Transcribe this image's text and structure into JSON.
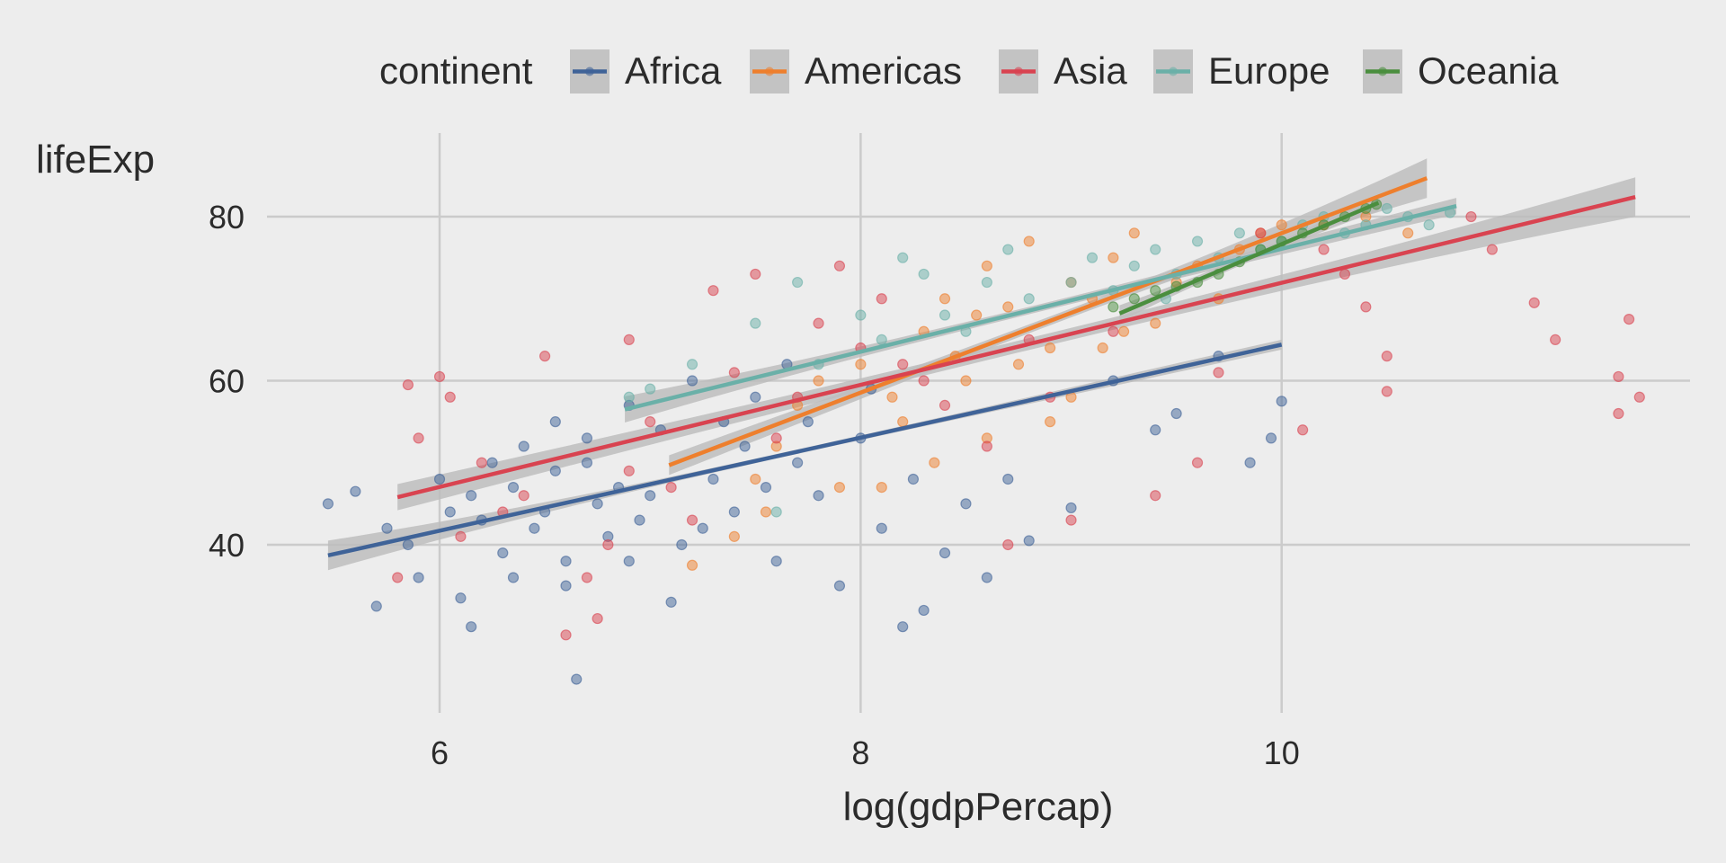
{
  "chart_data": {
    "type": "scatter",
    "title": "",
    "xlabel": "log(gdpPercap)",
    "ylabel": "lifeExp",
    "xlim": [
      5.18,
      11.94
    ],
    "ylim": [
      19.5,
      90.2
    ],
    "xticks": [
      6,
      8,
      10
    ],
    "yticks": [
      40,
      60,
      80
    ],
    "xtick_labels": [
      "6",
      "8",
      "10"
    ],
    "ytick_labels": [
      "40",
      "60",
      "80"
    ],
    "grid": true,
    "legend": {
      "title": "continent",
      "position": "top"
    },
    "series": [
      {
        "name": "Africa",
        "color": "#3f6398",
        "fit": {
          "x": [
            5.47,
            10.0
          ],
          "y": [
            38.7,
            64.4
          ],
          "ci_halfwidth": [
            1.8,
            0.6
          ]
        },
        "points": [
          [
            5.47,
            45
          ],
          [
            5.6,
            46.5
          ],
          [
            5.7,
            32.5
          ],
          [
            5.75,
            42
          ],
          [
            5.9,
            36
          ],
          [
            6.0,
            48
          ],
          [
            6.1,
            33.5
          ],
          [
            6.15,
            30
          ],
          [
            6.2,
            43
          ],
          [
            6.3,
            39
          ],
          [
            6.35,
            47
          ],
          [
            6.4,
            52
          ],
          [
            6.5,
            44
          ],
          [
            6.55,
            55
          ],
          [
            6.6,
            35
          ],
          [
            6.65,
            23.6
          ],
          [
            6.7,
            50
          ],
          [
            6.8,
            41
          ],
          [
            6.9,
            57
          ],
          [
            7.0,
            46
          ],
          [
            7.1,
            33
          ],
          [
            7.2,
            60
          ],
          [
            7.3,
            48
          ],
          [
            7.4,
            44
          ],
          [
            7.5,
            58
          ],
          [
            7.6,
            38
          ],
          [
            7.7,
            50
          ],
          [
            7.8,
            46
          ],
          [
            7.9,
            35
          ],
          [
            8.0,
            53
          ],
          [
            8.1,
            42
          ],
          [
            8.2,
            30
          ],
          [
            8.3,
            32
          ],
          [
            8.4,
            39
          ],
          [
            8.5,
            45
          ],
          [
            8.6,
            36
          ],
          [
            8.7,
            48
          ],
          [
            8.8,
            40.5
          ],
          [
            9.0,
            44.5
          ],
          [
            9.2,
            60
          ],
          [
            9.4,
            54
          ],
          [
            9.5,
            56
          ],
          [
            9.7,
            63
          ],
          [
            9.85,
            50
          ],
          [
            9.95,
            53
          ],
          [
            10.0,
            57.5
          ],
          [
            6.45,
            42
          ],
          [
            6.75,
            45
          ],
          [
            7.05,
            54
          ],
          [
            7.25,
            42
          ],
          [
            7.45,
            52
          ],
          [
            6.25,
            50
          ],
          [
            6.6,
            38
          ],
          [
            7.65,
            62
          ],
          [
            8.05,
            59
          ],
          [
            6.05,
            44
          ],
          [
            6.35,
            36
          ],
          [
            6.85,
            47
          ],
          [
            7.15,
            40
          ],
          [
            7.35,
            55
          ],
          [
            6.55,
            49
          ],
          [
            6.95,
            43
          ],
          [
            7.55,
            47
          ],
          [
            6.15,
            46
          ],
          [
            6.7,
            53
          ],
          [
            5.85,
            40
          ],
          [
            6.9,
            38
          ],
          [
            7.75,
            55
          ],
          [
            8.25,
            48
          ]
        ]
      },
      {
        "name": "Americas",
        "color": "#ee7f2d",
        "fit": {
          "x": [
            7.09,
            10.69
          ],
          "y": [
            49.7,
            84.7
          ],
          "ci_halfwidth": [
            1.2,
            2.4
          ]
        },
        "points": [
          [
            7.2,
            37.5
          ],
          [
            7.4,
            41
          ],
          [
            7.5,
            48
          ],
          [
            7.6,
            52
          ],
          [
            7.7,
            57
          ],
          [
            7.8,
            60
          ],
          [
            7.9,
            47
          ],
          [
            8.0,
            62
          ],
          [
            8.1,
            47
          ],
          [
            8.2,
            55
          ],
          [
            8.3,
            66
          ],
          [
            8.4,
            70
          ],
          [
            8.5,
            60
          ],
          [
            8.6,
            74
          ],
          [
            8.7,
            69
          ],
          [
            8.8,
            77
          ],
          [
            8.9,
            64
          ],
          [
            9.0,
            72
          ],
          [
            9.1,
            70
          ],
          [
            9.2,
            75
          ],
          [
            9.3,
            78
          ],
          [
            9.4,
            67
          ],
          [
            9.5,
            72
          ],
          [
            9.6,
            74
          ],
          [
            9.7,
            70
          ],
          [
            9.8,
            76
          ],
          [
            9.9,
            78
          ],
          [
            10.0,
            79
          ],
          [
            10.2,
            79
          ],
          [
            10.4,
            80
          ],
          [
            10.6,
            78
          ],
          [
            8.35,
            50
          ],
          [
            8.6,
            53
          ],
          [
            9.0,
            58
          ],
          [
            7.55,
            44
          ],
          [
            8.45,
            63
          ],
          [
            8.9,
            55
          ],
          [
            8.15,
            58
          ],
          [
            8.75,
            62
          ],
          [
            9.25,
            66
          ],
          [
            8.55,
            68
          ],
          [
            9.15,
            64
          ]
        ]
      },
      {
        "name": "Asia",
        "color": "#d94350",
        "fit": {
          "x": [
            5.8,
            11.68
          ],
          "y": [
            45.8,
            82.4
          ],
          "ci_halfwidth": [
            1.6,
            2.4
          ]
        },
        "points": [
          [
            5.8,
            36
          ],
          [
            5.85,
            59.5
          ],
          [
            5.9,
            53
          ],
          [
            6.0,
            60.5
          ],
          [
            6.05,
            58
          ],
          [
            6.1,
            41
          ],
          [
            6.3,
            44
          ],
          [
            6.5,
            63
          ],
          [
            6.6,
            29
          ],
          [
            6.7,
            36
          ],
          [
            6.8,
            40
          ],
          [
            6.9,
            65
          ],
          [
            7.0,
            55
          ],
          [
            7.1,
            47
          ],
          [
            7.3,
            71
          ],
          [
            7.4,
            61
          ],
          [
            7.5,
            73
          ],
          [
            7.7,
            58
          ],
          [
            7.8,
            67
          ],
          [
            7.9,
            74
          ],
          [
            8.0,
            64
          ],
          [
            8.1,
            70
          ],
          [
            8.2,
            62
          ],
          [
            8.4,
            57
          ],
          [
            8.6,
            52
          ],
          [
            8.7,
            40
          ],
          [
            8.9,
            58
          ],
          [
            9.0,
            43
          ],
          [
            9.2,
            66
          ],
          [
            9.4,
            46
          ],
          [
            9.6,
            50
          ],
          [
            9.9,
            78
          ],
          [
            10.1,
            54
          ],
          [
            10.3,
            73
          ],
          [
            10.4,
            69
          ],
          [
            10.5,
            63
          ],
          [
            10.5,
            58.7
          ],
          [
            10.9,
            80
          ],
          [
            11.0,
            76
          ],
          [
            11.2,
            69.5
          ],
          [
            11.3,
            65
          ],
          [
            11.6,
            60.5
          ],
          [
            11.6,
            56
          ],
          [
            11.65,
            67.5
          ],
          [
            11.7,
            58
          ],
          [
            9.7,
            61
          ],
          [
            10.2,
            76
          ],
          [
            6.2,
            50
          ],
          [
            6.9,
            49
          ],
          [
            7.6,
            53
          ],
          [
            6.4,
            46
          ],
          [
            6.75,
            31
          ],
          [
            7.2,
            43
          ],
          [
            8.3,
            60
          ],
          [
            8.8,
            65
          ]
        ]
      },
      {
        "name": "Europe",
        "color": "#6ab0a8",
        "fit": {
          "x": [
            6.88,
            10.83
          ],
          "y": [
            56.5,
            81.3
          ],
          "ci_halfwidth": [
            1.6,
            1.0
          ]
        },
        "points": [
          [
            6.9,
            58
          ],
          [
            7.0,
            59
          ],
          [
            7.2,
            62
          ],
          [
            7.5,
            67
          ],
          [
            7.6,
            44
          ],
          [
            7.7,
            72
          ],
          [
            7.8,
            62
          ],
          [
            8.0,
            68
          ],
          [
            8.1,
            65
          ],
          [
            8.2,
            75
          ],
          [
            8.3,
            73
          ],
          [
            8.4,
            68
          ],
          [
            8.6,
            72
          ],
          [
            8.7,
            76
          ],
          [
            8.8,
            70
          ],
          [
            9.0,
            72
          ],
          [
            9.1,
            75
          ],
          [
            9.2,
            71
          ],
          [
            9.3,
            74
          ],
          [
            9.4,
            76
          ],
          [
            9.5,
            73
          ],
          [
            9.6,
            77
          ],
          [
            9.7,
            75
          ],
          [
            9.8,
            78
          ],
          [
            9.9,
            76
          ],
          [
            10.0,
            77
          ],
          [
            10.1,
            79
          ],
          [
            10.2,
            80
          ],
          [
            10.3,
            78
          ],
          [
            10.4,
            79
          ],
          [
            10.5,
            81
          ],
          [
            10.6,
            80
          ],
          [
            10.7,
            79
          ],
          [
            10.8,
            80.5
          ],
          [
            9.45,
            70
          ],
          [
            8.5,
            66
          ]
        ]
      },
      {
        "name": "Oceania",
        "color": "#4a8e3e",
        "fit": {
          "x": [
            9.23,
            10.46
          ],
          "y": [
            68.2,
            81.7
          ],
          "ci_halfwidth": [
            1.0,
            1.0
          ]
        },
        "points": [
          [
            9.2,
            69
          ],
          [
            9.3,
            70
          ],
          [
            9.4,
            71
          ],
          [
            9.5,
            71.5
          ],
          [
            9.6,
            72
          ],
          [
            9.7,
            73
          ],
          [
            9.8,
            74.5
          ],
          [
            9.9,
            76
          ],
          [
            10.0,
            77
          ],
          [
            10.1,
            78
          ],
          [
            10.2,
            79
          ],
          [
            10.3,
            80
          ],
          [
            10.4,
            81
          ],
          [
            10.45,
            81.5
          ]
        ]
      }
    ]
  }
}
